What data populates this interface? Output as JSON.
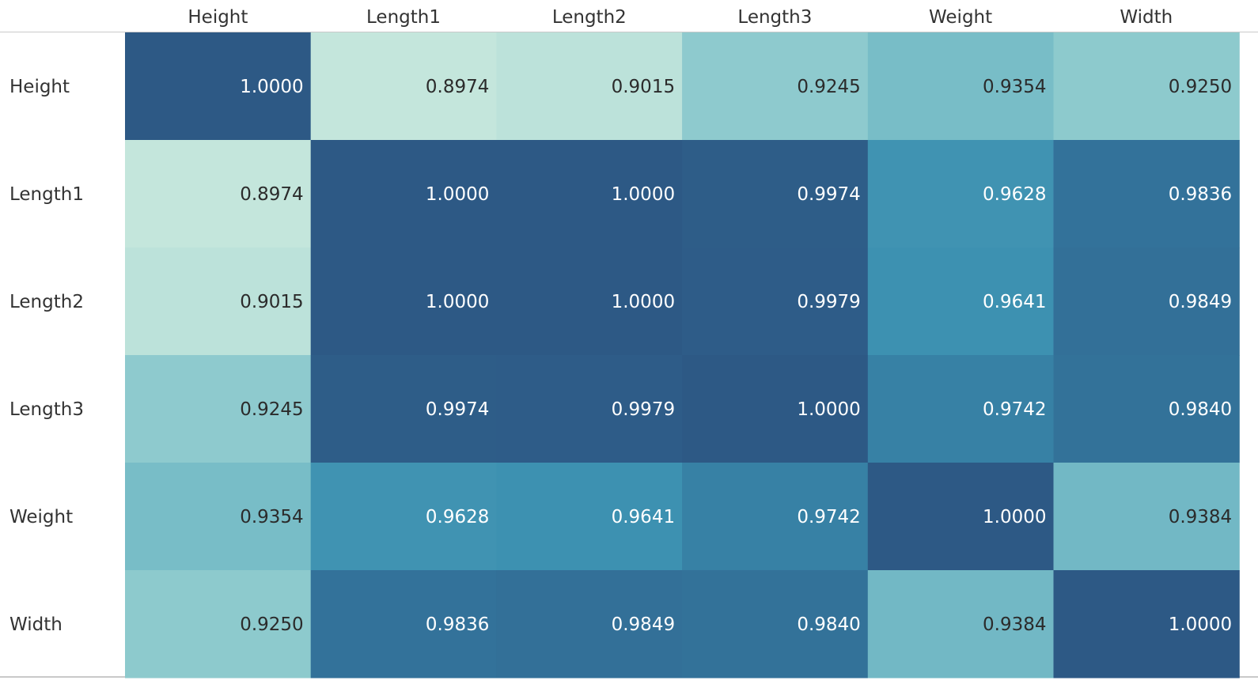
{
  "chart_data": {
    "type": "heatmap",
    "title": "",
    "x_categories": [
      "Height",
      "Length1",
      "Length2",
      "Length3",
      "Weight",
      "Width"
    ],
    "y_categories": [
      "Height",
      "Length1",
      "Length2",
      "Length3",
      "Weight",
      "Width"
    ],
    "values": [
      [
        1.0,
        0.8974,
        0.9015,
        0.9245,
        0.9354,
        0.925
      ],
      [
        0.8974,
        1.0,
        1.0,
        0.9974,
        0.9628,
        0.9836
      ],
      [
        0.9015,
        1.0,
        1.0,
        0.9979,
        0.9641,
        0.9849
      ],
      [
        0.9245,
        0.9974,
        0.9979,
        1.0,
        0.9742,
        0.984
      ],
      [
        0.9354,
        0.9628,
        0.9641,
        0.9742,
        1.0,
        0.9384
      ],
      [
        0.925,
        0.9836,
        0.9849,
        0.984,
        0.9384,
        1.0
      ]
    ],
    "value_format": "0.0000",
    "color_scale": {
      "min": 0.8974,
      "max": 1.0,
      "stops": [
        "#c4e6dc",
        "#80c3ca",
        "#3a8eb0",
        "#2d5985"
      ]
    },
    "label_color_light": "#ffffff",
    "label_color_dark": "#2b2b2b"
  }
}
